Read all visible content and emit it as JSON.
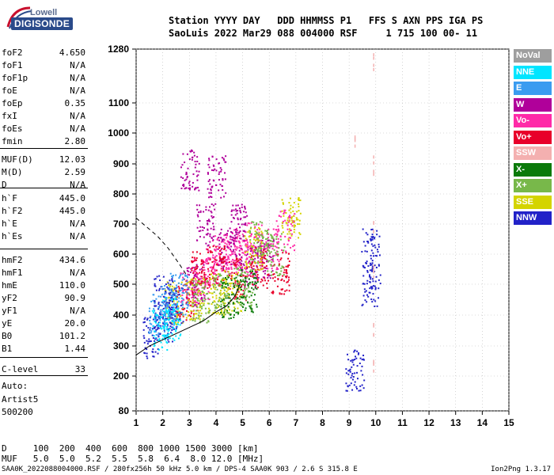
{
  "logo": {
    "line1": "Lowell",
    "line2": "DIGISONDE"
  },
  "header": {
    "line1": "Station YYYY DAY   DDD HHMMSS P1   FFS S AXN PPS IGA PS",
    "line2": "SaoLuis 2022 Mar29 088 004000 RSF     1 715 100 00- 11"
  },
  "params": [
    {
      "k": "foF2",
      "v": "4.650"
    },
    {
      "k": "foF1",
      "v": "N/A"
    },
    {
      "k": "foF1p",
      "v": "N/A"
    },
    {
      "k": "foE",
      "v": "N/A"
    },
    {
      "k": "foEp",
      "v": "0.35"
    },
    {
      "k": "fxI",
      "v": "N/A"
    },
    {
      "k": "foEs",
      "v": "N/A"
    },
    {
      "k": "fmin",
      "v": "2.80"
    },
    {
      "k": "MUF(D)",
      "v": "12.03"
    },
    {
      "k": "M(D)",
      "v": "2.59"
    },
    {
      "k": "D",
      "v": "N/A"
    },
    {
      "k": "h`F",
      "v": "445.0"
    },
    {
      "k": "h`F2",
      "v": "445.0"
    },
    {
      "k": "h`E",
      "v": "N/A"
    },
    {
      "k": "h`Es",
      "v": "N/A"
    },
    {
      "k": "hmF2",
      "v": "434.6"
    },
    {
      "k": "hmF1",
      "v": "N/A"
    },
    {
      "k": "hmE",
      "v": "110.0"
    },
    {
      "k": "yF2",
      "v": "90.9"
    },
    {
      "k": "yF1",
      "v": "N/A"
    },
    {
      "k": "yE",
      "v": "20.0"
    },
    {
      "k": "B0",
      "v": "101.2"
    },
    {
      "k": "B1",
      "v": "1.44"
    },
    {
      "k": "C-level",
      "v": "33"
    }
  ],
  "auto": {
    "line1": "Auto:",
    "line2": "Artist5",
    "line3": "500200"
  },
  "legend": [
    {
      "label": "NoVal",
      "color": "#9e9e9e"
    },
    {
      "label": "NNE",
      "color": "#00e5ff"
    },
    {
      "label": "E",
      "color": "#3a9cf0"
    },
    {
      "label": "W",
      "color": "#b0009a"
    },
    {
      "label": "Vo-",
      "color": "#ff2aa8"
    },
    {
      "label": "Vo+",
      "color": "#e8002a"
    },
    {
      "label": "SSW",
      "color": "#f4b0b0"
    },
    {
      "label": "X-",
      "color": "#0a7a0a"
    },
    {
      "label": "X+",
      "color": "#78b84a"
    },
    {
      "label": "SSE",
      "color": "#d4d400"
    },
    {
      "label": "NNW",
      "color": "#2222c8"
    }
  ],
  "bottom": {
    "d_line": "D     100  200  400  600  800 1000 1500 3000 [km]",
    "muf_line": "MUF   5.0  5.0  5.2  5.5  5.8  6.4  8.0 12.0 [MHz]"
  },
  "footer": {
    "left": "SAA0K_2022088004000.RSF / 280fx256h 50 kHz 5.0 km / DPS-4 SAA0K 903 / 2.6 S 315.8 E",
    "right": "Ion2Png 1.3.17"
  },
  "chart_data": {
    "type": "scatter",
    "title": "",
    "xlabel": "",
    "ylabel": "",
    "xlim": [
      1,
      15
    ],
    "ylim": [
      80,
      1280
    ],
    "x_ticks": [
      1,
      2,
      3,
      4,
      5,
      6,
      7,
      8,
      9,
      10,
      11,
      12,
      13,
      14,
      15
    ],
    "y_ticks": [
      80,
      200,
      300,
      400,
      500,
      600,
      700,
      800,
      900,
      1000,
      1100,
      1280
    ],
    "grid": true,
    "legend_placement": "right",
    "series": [
      {
        "name": "Vo-",
        "points": [
          [
            3.0,
            480
          ],
          [
            3.4,
            520
          ],
          [
            3.8,
            560
          ],
          [
            4.2,
            600
          ],
          [
            4.6,
            620
          ],
          [
            5.0,
            600
          ],
          [
            5.4,
            640
          ],
          [
            6.0,
            620
          ],
          [
            6.6,
            680
          ]
        ]
      },
      {
        "name": "W",
        "points": [
          [
            3.2,
            500
          ],
          [
            3.6,
            700
          ],
          [
            4.0,
            860
          ],
          [
            4.4,
            620
          ],
          [
            4.8,
            700
          ],
          [
            5.2,
            560
          ],
          [
            5.8,
            590
          ],
          [
            3.0,
            880
          ]
        ]
      },
      {
        "name": "Vo+",
        "points": [
          [
            2.8,
            450
          ],
          [
            3.4,
            540
          ],
          [
            4.0,
            560
          ],
          [
            4.8,
            520
          ],
          [
            5.6,
            560
          ],
          [
            6.4,
            540
          ]
        ]
      },
      {
        "name": "SSE",
        "points": [
          [
            2.4,
            440
          ],
          [
            3.2,
            455
          ],
          [
            4.0,
            470
          ],
          [
            4.6,
            480
          ],
          [
            5.4,
            620
          ],
          [
            6.8,
            720
          ]
        ]
      },
      {
        "name": "X+",
        "points": [
          [
            3.4,
            445
          ],
          [
            4.2,
            470
          ],
          [
            5.0,
            490
          ],
          [
            5.6,
            640
          ],
          [
            6.2,
            600
          ]
        ]
      },
      {
        "name": "NNW",
        "points": [
          [
            1.6,
            330
          ],
          [
            2.0,
            380
          ],
          [
            2.4,
            420
          ],
          [
            2.0,
            460
          ],
          [
            9.2,
            220
          ],
          [
            9.8,
            620
          ],
          [
            9.8,
            500
          ]
        ]
      },
      {
        "name": "E",
        "points": [
          [
            1.8,
            400
          ],
          [
            2.2,
            430
          ],
          [
            2.6,
            470
          ]
        ]
      },
      {
        "name": "NNE",
        "points": [
          [
            1.9,
            350
          ],
          [
            2.3,
            390
          ]
        ]
      },
      {
        "name": "SSW",
        "points": [
          [
            9.9,
            1240
          ],
          [
            9.9,
            900
          ],
          [
            9.9,
            700
          ],
          [
            9.9,
            550
          ],
          [
            9.9,
            350
          ],
          [
            9.9,
            250
          ],
          [
            9.2,
            980
          ]
        ]
      },
      {
        "name": "X-",
        "points": [
          [
            4.5,
            460
          ],
          [
            5.2,
            480
          ]
        ]
      }
    ],
    "curves": [
      {
        "style": "dashed",
        "points": [
          [
            1.0,
            720
          ],
          [
            1.4,
            690
          ],
          [
            1.8,
            660
          ],
          [
            2.2,
            620
          ],
          [
            2.6,
            570
          ],
          [
            2.9,
            530
          ]
        ]
      },
      {
        "style": "solid",
        "points": [
          [
            1.0,
            270
          ],
          [
            1.5,
            300
          ],
          [
            2.0,
            320
          ],
          [
            2.5,
            340
          ],
          [
            3.0,
            360
          ],
          [
            3.5,
            380
          ],
          [
            4.0,
            410
          ],
          [
            4.4,
            430
          ],
          [
            4.7,
            460
          ],
          [
            4.9,
            500
          ]
        ]
      }
    ]
  }
}
